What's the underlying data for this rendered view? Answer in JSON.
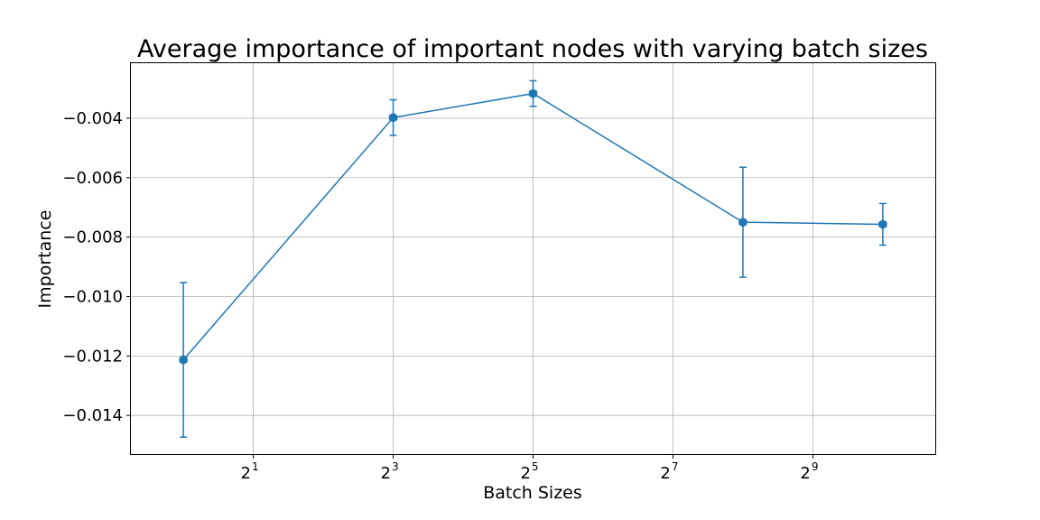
{
  "chart_data": {
    "type": "line",
    "title": "Average importance of important nodes with varying batch sizes",
    "xlabel": "Batch Sizes",
    "ylabel": "Importance",
    "x_scale": "log2",
    "xlim_log2": [
      -0.75,
      10.75
    ],
    "ylim": [
      -0.0153,
      -0.00215
    ],
    "grid": true,
    "x_ticks": [
      {
        "base": "2",
        "exp": "1",
        "log2": 1
      },
      {
        "base": "2",
        "exp": "3",
        "log2": 3
      },
      {
        "base": "2",
        "exp": "5",
        "log2": 5
      },
      {
        "base": "2",
        "exp": "7",
        "log2": 7
      },
      {
        "base": "2",
        "exp": "9",
        "log2": 9
      }
    ],
    "y_ticks": [
      {
        "label": "−0.004",
        "value": -0.004
      },
      {
        "label": "−0.006",
        "value": -0.006
      },
      {
        "label": "−0.008",
        "value": -0.008
      },
      {
        "label": "−0.010",
        "value": -0.01
      },
      {
        "label": "−0.012",
        "value": -0.012
      },
      {
        "label": "−0.014",
        "value": -0.014
      }
    ],
    "series": [
      {
        "color": "#1f77b4",
        "marker": "hexagon",
        "x": [
          1,
          8,
          32,
          256,
          1024
        ],
        "y": [
          -0.01213,
          -0.00398,
          -0.00317,
          -0.0075,
          -0.00757
        ],
        "yerr": [
          0.0026,
          0.0006,
          0.00043,
          0.00185,
          0.0007
        ]
      }
    ]
  }
}
